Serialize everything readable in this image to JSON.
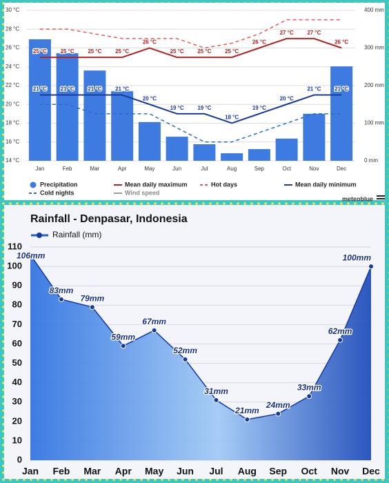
{
  "chart_data": [
    {
      "type": "combo",
      "categories": [
        "Jan",
        "Feb",
        "Mar",
        "Apr",
        "May",
        "Jun",
        "Jul",
        "Aug",
        "Sep",
        "Oct",
        "Nov",
        "Dec"
      ],
      "ylim": [
        14,
        30
      ],
      "yticks": [
        {
          "value": 14,
          "label": "14 °C"
        },
        {
          "value": 16,
          "label": "16 °C"
        },
        {
          "value": 18,
          "label": "18 °C"
        },
        {
          "value": 20,
          "label": "20 °C"
        },
        {
          "value": 22,
          "label": "22 °C"
        },
        {
          "value": 24,
          "label": "24 °C"
        },
        {
          "value": 26,
          "label": "26 °C"
        },
        {
          "value": 28,
          "label": "28 °C"
        },
        {
          "value": 30,
          "label": "30 °C"
        }
      ],
      "y2lim": [
        0,
        400
      ],
      "y2ticks": [
        {
          "value": 0,
          "label": "0 mm"
        },
        {
          "value": 100,
          "label": "100 mm"
        },
        {
          "value": 200,
          "label": "200 mm"
        },
        {
          "value": 300,
          "label": "300 mm"
        },
        {
          "value": 400,
          "label": "400 mm"
        }
      ],
      "grid": true,
      "brand": "meteoblue",
      "series": [
        {
          "name": "Precipitation",
          "type": "bar",
          "axis": "y2",
          "color": "#3d7be0",
          "values": [
            323,
            286,
            240,
            185,
            103,
            64,
            44,
            20,
            31,
            59,
            125,
            251
          ]
        },
        {
          "name": "Mean daily maximum",
          "type": "line",
          "color": "#b22222",
          "values": [
            25,
            25,
            25,
            25,
            26,
            25,
            25,
            25,
            26,
            27,
            27,
            26
          ],
          "value_labels": [
            "25 °C",
            "25 °C",
            "25 °C",
            "25 °C",
            "26 °C",
            "25 °C",
            "25 °C",
            "25 °C",
            "26 °C",
            "27 °C",
            "27 °C",
            "26 °C"
          ]
        },
        {
          "name": "Hot days",
          "type": "dashed",
          "color": "#e85a5a",
          "values": [
            28,
            28,
            27.5,
            27,
            27,
            27,
            26,
            26.5,
            27.5,
            29,
            29,
            29
          ]
        },
        {
          "name": "Mean daily minimum",
          "type": "line",
          "color": "#1a3a9a",
          "values": [
            21,
            21,
            21,
            21,
            20,
            19,
            19,
            18,
            19,
            20,
            21,
            21
          ],
          "value_labels": [
            "21 °C",
            "21 °C",
            "21 °C",
            "21 °C",
            "20 °C",
            "19 °C",
            "19 °C",
            "18 °C",
            "19 °C",
            "20 °C",
            "21 °C",
            "21 °C"
          ]
        },
        {
          "name": "Cold nights",
          "type": "dashed",
          "color": "#2a6ad0",
          "values": [
            20,
            20,
            19,
            19,
            19,
            17.5,
            16,
            16,
            17,
            18,
            19,
            19
          ]
        },
        {
          "name": "Wind speed",
          "type": "none",
          "color": "#999999"
        }
      ]
    },
    {
      "type": "area",
      "title": "Rainfall - Denpasar, Indonesia",
      "categories": [
        "Jan",
        "Feb",
        "Mar",
        "Apr",
        "May",
        "Jun",
        "Jul",
        "Aug",
        "Sep",
        "Oct",
        "Nov",
        "Dec"
      ],
      "ylim": [
        0,
        110
      ],
      "yticks": [
        0,
        10,
        20,
        30,
        40,
        50,
        60,
        70,
        80,
        90,
        100,
        110
      ],
      "grid": true,
      "series": [
        {
          "name": "Rainfall (mm)",
          "color": "#1e5fd0",
          "values": [
            106,
            83,
            79,
            59,
            67,
            52,
            31,
            21,
            24,
            33,
            62,
            100
          ],
          "value_labels": [
            "106mm",
            "83mm",
            "79mm",
            "59mm",
            "67mm",
            "52mm",
            "31mm",
            "21mm",
            "24mm",
            "33mm",
            "62mm",
            "100mm"
          ]
        }
      ]
    }
  ]
}
